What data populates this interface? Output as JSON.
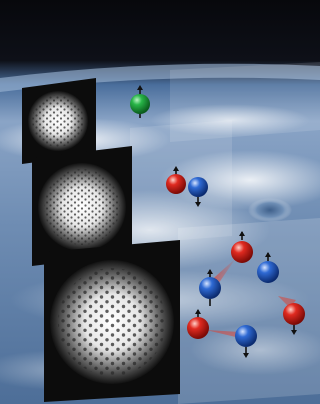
{
  "image": {
    "subject": "earth-from-orbit-background",
    "panels": [
      {
        "name": "lattice-panel-small",
        "particle_count": 1,
        "particle_colors": [
          "green"
        ]
      },
      {
        "name": "lattice-panel-medium",
        "particle_count": 2,
        "particle_colors": [
          "red",
          "blue"
        ]
      },
      {
        "name": "lattice-panel-large",
        "particle_count": 6,
        "particle_colors": [
          "red",
          "blue",
          "blue",
          "red",
          "red",
          "blue"
        ]
      }
    ],
    "colors": {
      "space": "#0b0d14",
      "earth_blue": "#6f8fb6",
      "cloud": "#e8ecf2",
      "particle_green": "#1fa33a",
      "particle_red": "#d8201c",
      "particle_blue": "#2a62c8",
      "bond_red": "#e23b2c"
    }
  }
}
